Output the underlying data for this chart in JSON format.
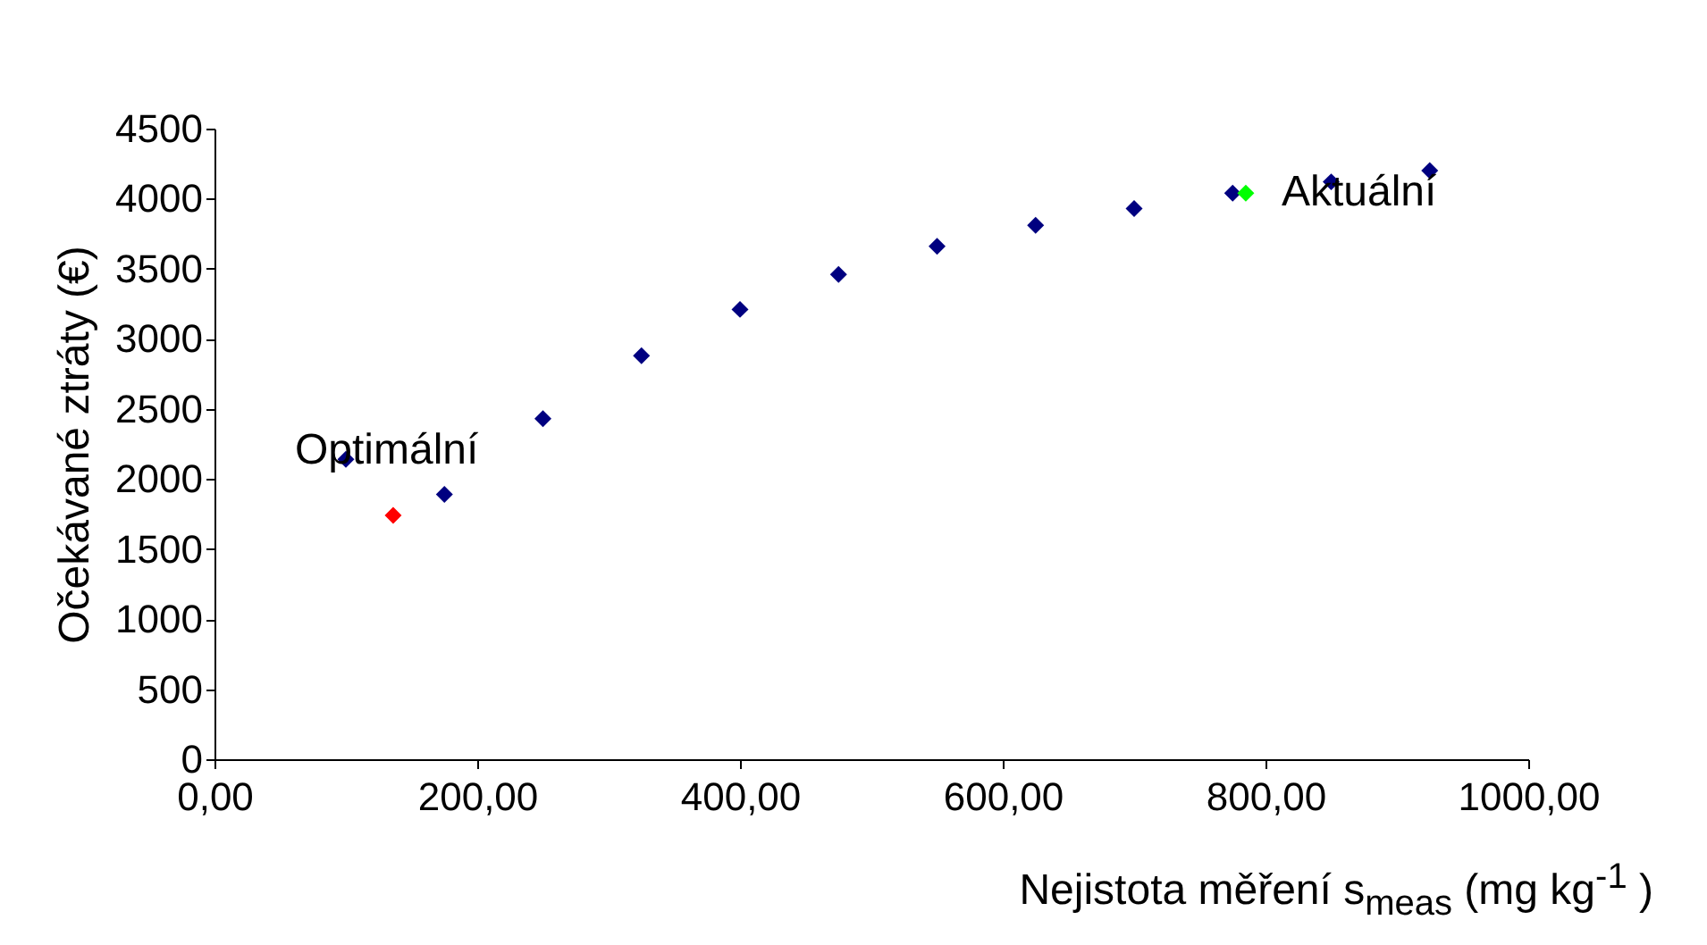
{
  "chart_data": {
    "type": "scatter",
    "xlabel": "Nejistota měření s$_{meas}$ (mg kg$^{-1}$ )",
    "ylabel": "Očekávané ztráty (€)",
    "series": [
      {
        "color": "#000080",
        "x": [
          100,
          175,
          250,
          325,
          400,
          475,
          550,
          625,
          700,
          775,
          850,
          925
        ],
        "values": [
          2140,
          1890,
          2430,
          2880,
          3210,
          3460,
          3660,
          3810,
          3930,
          4040,
          4120,
          4200
        ]
      },
      {
        "color": "#ff0000",
        "x": [
          136
        ],
        "values": [
          1740
        ]
      },
      {
        "color": "#00ff00",
        "x": [
          785
        ],
        "values": [
          4040
        ]
      }
    ],
    "annotations": [
      {
        "text": "Optimální",
        "x": 136,
        "y": 1740
      },
      {
        "text": "Aktuální",
        "x": 785,
        "y": 4040
      }
    ],
    "xlim": [
      0,
      1000
    ],
    "ylim": [
      0,
      4500
    ],
    "xticks": [
      {
        "value": 0,
        "label": "0,00"
      },
      {
        "value": 200,
        "label": "200,00"
      },
      {
        "value": 400,
        "label": "400,00"
      },
      {
        "value": 600,
        "label": "600,00"
      },
      {
        "value": 800,
        "label": "800,00"
      },
      {
        "value": 1000,
        "label": "1000,00"
      }
    ],
    "yticks": [
      0,
      500,
      1000,
      1500,
      2000,
      2500,
      3000,
      3500,
      4000,
      4500
    ],
    "marker": "diamond",
    "grid": false
  }
}
